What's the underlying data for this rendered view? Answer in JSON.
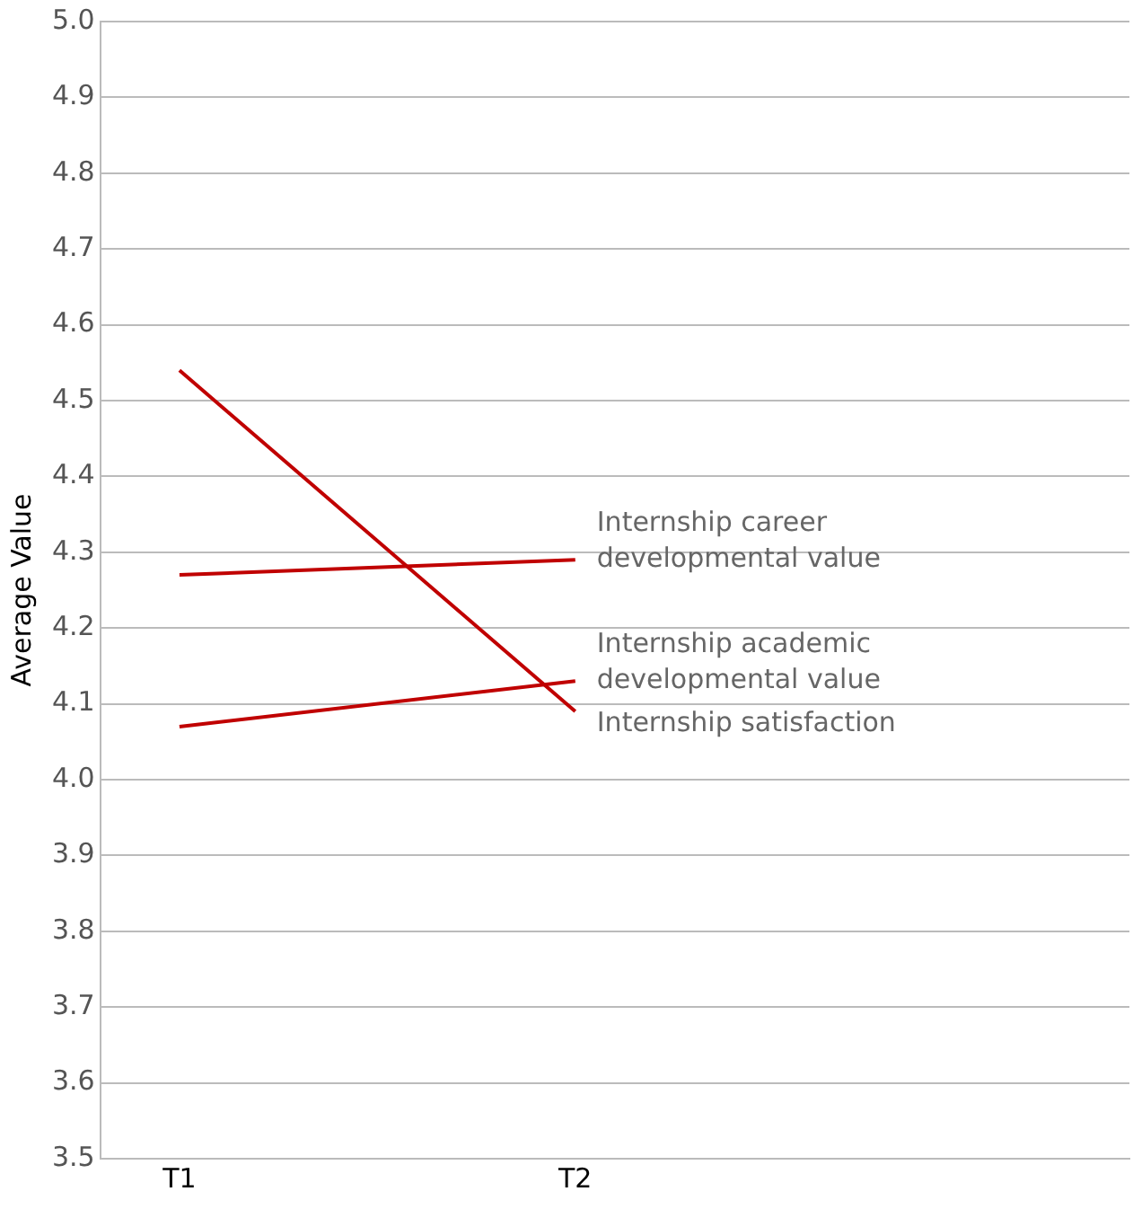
{
  "chart_data": {
    "type": "line",
    "ylabel": "Average Value",
    "categories": [
      "T1",
      "T2"
    ],
    "series": [
      {
        "name": "Internship satisfaction",
        "color": "#c00000",
        "values": [
          4.54,
          4.09
        ]
      },
      {
        "name": "Internship career developmental value",
        "color": "#c00000",
        "values": [
          4.27,
          4.29
        ]
      },
      {
        "name": "Internship academic developmental value",
        "color": "#c00000",
        "values": [
          4.07,
          4.13
        ]
      }
    ],
    "ylim": [
      3.5,
      5.0
    ],
    "yticks": [
      3.5,
      3.6,
      3.7,
      3.8,
      3.9,
      {
        "value": 4,
        "label": "4.0"
      },
      4.1,
      4.2,
      4.3,
      4.4,
      4.5,
      4.6,
      4.7,
      4.8,
      4.9,
      {
        "value": 5,
        "label": "5.0"
      }
    ],
    "grid": "y",
    "legend": false,
    "marker": "none",
    "line_style": "solid"
  }
}
